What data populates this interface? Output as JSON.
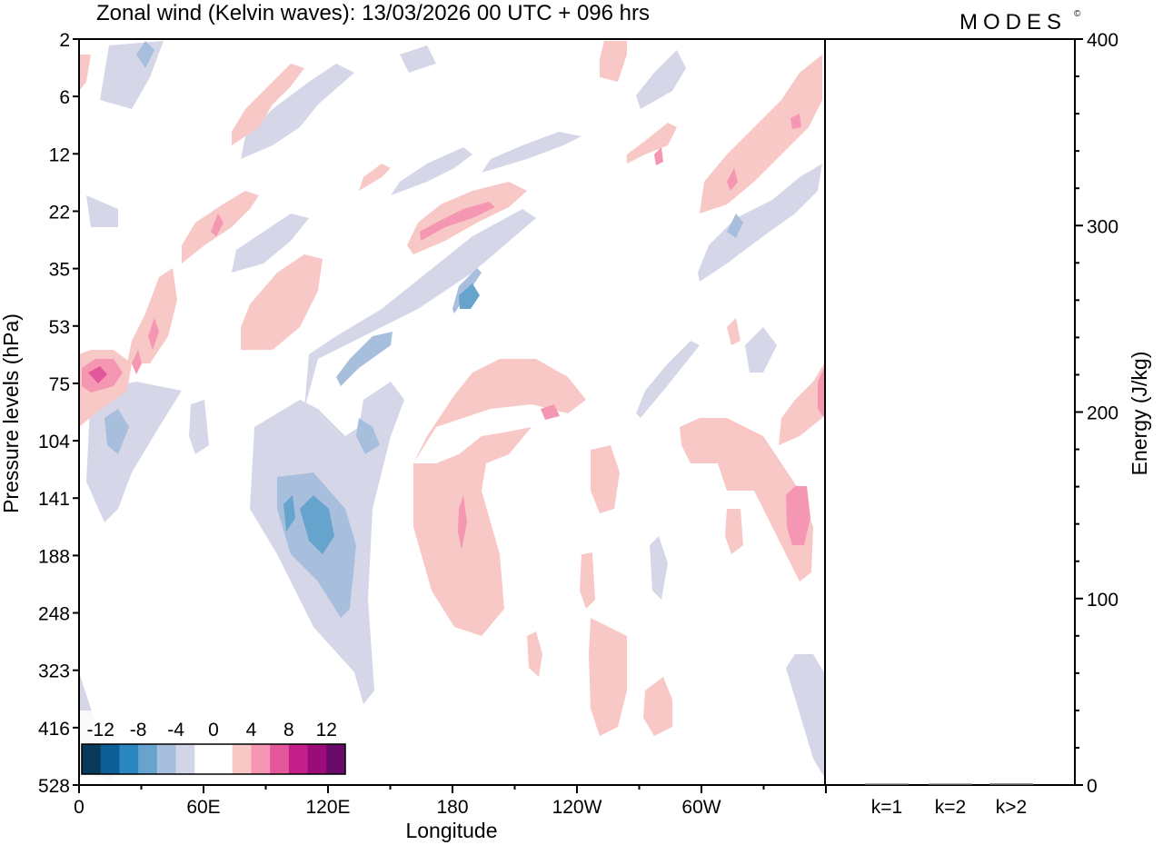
{
  "header": {
    "title": "Zonal wind (Kelvin waves):  13/03/2026  00 UTC  + 096 hrs",
    "brand": "MODES",
    "brand_mark": "©"
  },
  "chart_data": [
    {
      "type": "heatmap",
      "title": "Zonal wind (Kelvin waves)",
      "xlabel": "Longitude",
      "ylabel": "Pressure levels (hPa)",
      "x_ticks": [
        "0",
        "60E",
        "120E",
        "180",
        "120W",
        "60W"
      ],
      "y_ticks": [
        "2",
        "6",
        "12",
        "22",
        "35",
        "53",
        "75",
        "104",
        "141",
        "188",
        "248",
        "323",
        "416",
        "528"
      ],
      "colorbar": {
        "labels": [
          "-12",
          "-8",
          "-4",
          "0",
          "4",
          "8",
          "12"
        ],
        "colors": [
          "#0a3a5a",
          "#0b5f95",
          "#2a86bf",
          "#67a4cd",
          "#a7bedc",
          "#d3d6e8",
          "#ffffff",
          "#ffffff",
          "#f8c8c6",
          "#f596b2",
          "#e2589a",
          "#c41f8a",
          "#9b0b7a",
          "#6a0a6a"
        ]
      },
      "contour_colors": {
        "neg_weak": "#d5d7e9",
        "neg_mid": "#a7bedc",
        "neg_strong": "#67a4cd",
        "pos_weak": "#f8c8c6",
        "pos_mid": "#f596b2",
        "pos_strong": "#e2589a"
      }
    },
    {
      "type": "bar",
      "ylabel": "Energy (J/kg)",
      "categories": [
        "k=1",
        "k=2",
        "k>2"
      ],
      "values": [
        0.5,
        0.5,
        0.8
      ],
      "ylim": [
        0,
        400
      ],
      "y_ticks": [
        "0",
        "100",
        "200",
        "300",
        "400"
      ]
    }
  ]
}
